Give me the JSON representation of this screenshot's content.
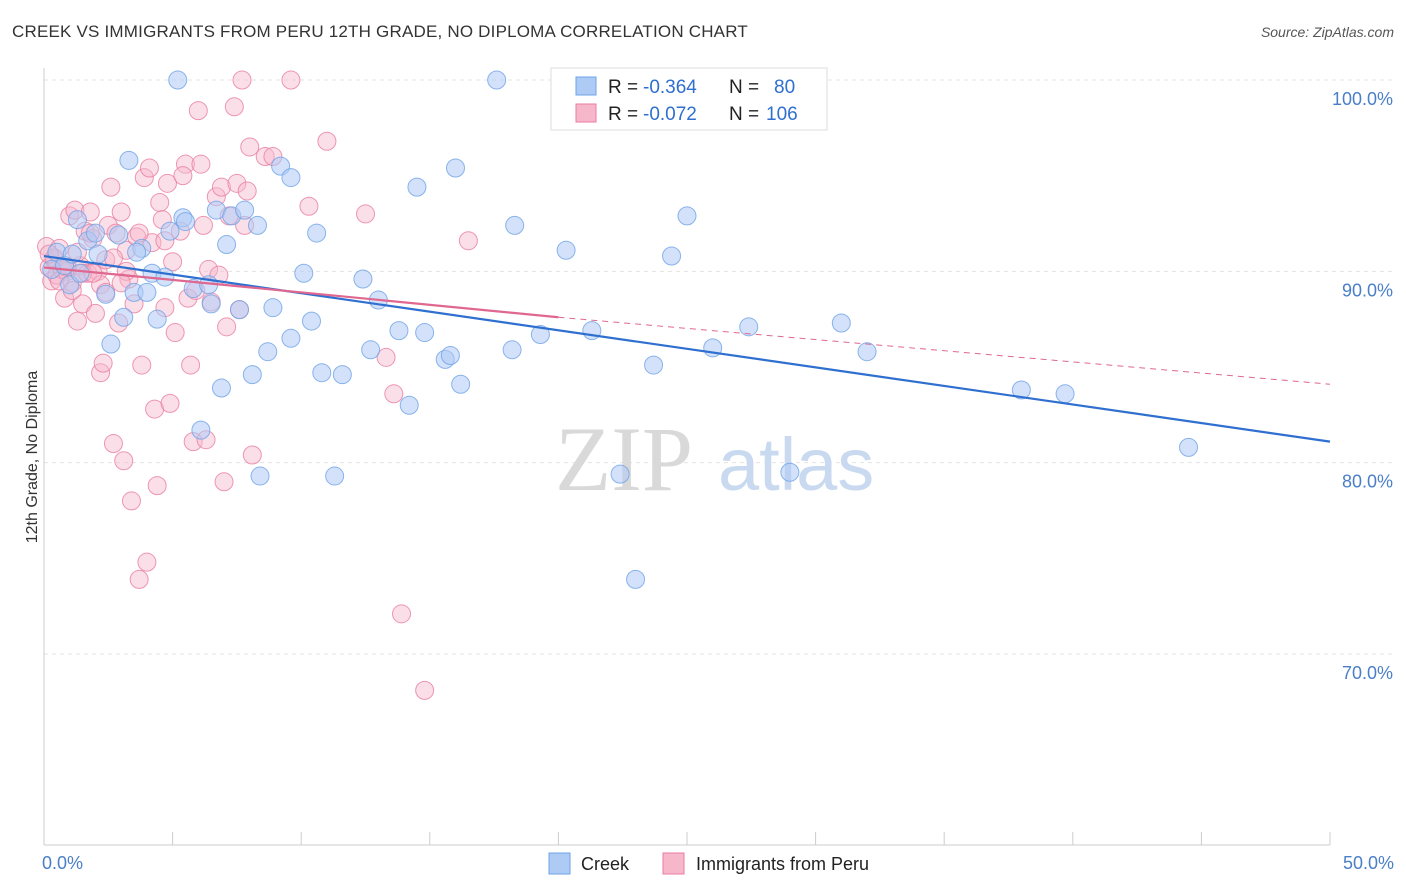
{
  "header": {
    "title": "CREEK VS IMMIGRANTS FROM PERU 12TH GRADE, NO DIPLOMA CORRELATION CHART",
    "source": "Source: ZipAtlas.com"
  },
  "watermark": {
    "part1": "ZIP",
    "part2": "atlas"
  },
  "legend_top": {
    "rows": [
      {
        "r_label": "R =",
        "r_value": "-0.364",
        "n_label": "N =",
        "n_value": "80",
        "color": "#aecbf5"
      },
      {
        "r_label": "R =",
        "r_value": "-0.072",
        "n_label": "N =",
        "n_value": "106",
        "color": "#f7b7cb"
      }
    ]
  },
  "chart_data": {
    "type": "scatter",
    "title": "CREEK VS IMMIGRANTS FROM PERU 12TH GRADE, NO DIPLOMA CORRELATION CHART",
    "xlabel": "",
    "ylabel": "12th Grade, No Diploma",
    "xlim": [
      0,
      50
    ],
    "ylim": [
      60,
      100
    ],
    "x_tick_labels": [
      "0.0%",
      "50.0%"
    ],
    "y_ticks": [
      70,
      80,
      90,
      100
    ],
    "y_tick_labels": [
      "70.0%",
      "80.0%",
      "90.0%",
      "100.0%"
    ],
    "grid": true,
    "legend_position": "top-center",
    "series": [
      {
        "name": "Creek",
        "color": "#6fa3e6",
        "fill": "#aecbf5",
        "r": -0.364,
        "n": 80,
        "trend": {
          "x": [
            0,
            50
          ],
          "y": [
            90.8,
            81.1
          ]
        },
        "points": [
          [
            0.3,
            90.1
          ],
          [
            0.5,
            91.0
          ],
          [
            0.8,
            90.3
          ],
          [
            1.0,
            89.3
          ],
          [
            1.1,
            90.9
          ],
          [
            1.3,
            92.7
          ],
          [
            1.7,
            91.6
          ],
          [
            2.1,
            90.9
          ],
          [
            2.4,
            88.8
          ],
          [
            2.6,
            86.2
          ],
          [
            2.9,
            91.9
          ],
          [
            3.1,
            87.6
          ],
          [
            3.3,
            95.8
          ],
          [
            3.5,
            88.9
          ],
          [
            3.8,
            91.2
          ],
          [
            4.0,
            88.9
          ],
          [
            4.2,
            89.9
          ],
          [
            4.4,
            87.5
          ],
          [
            4.7,
            89.7
          ],
          [
            4.9,
            92.1
          ],
          [
            5.2,
            100.0
          ],
          [
            5.4,
            92.8
          ],
          [
            5.5,
            92.6
          ],
          [
            5.8,
            89.1
          ],
          [
            6.1,
            81.7
          ],
          [
            6.4,
            89.3
          ],
          [
            6.5,
            88.3
          ],
          [
            6.7,
            93.2
          ],
          [
            6.9,
            83.9
          ],
          [
            7.1,
            91.4
          ],
          [
            7.3,
            92.9
          ],
          [
            7.6,
            88.0
          ],
          [
            7.8,
            93.2
          ],
          [
            8.1,
            84.6
          ],
          [
            8.3,
            92.4
          ],
          [
            8.4,
            79.3
          ],
          [
            8.7,
            85.8
          ],
          [
            8.9,
            88.1
          ],
          [
            9.2,
            95.5
          ],
          [
            9.6,
            94.9
          ],
          [
            9.6,
            86.5
          ],
          [
            10.1,
            89.9
          ],
          [
            10.4,
            87.4
          ],
          [
            10.6,
            92.0
          ],
          [
            10.8,
            84.7
          ],
          [
            11.3,
            79.3
          ],
          [
            11.6,
            84.6
          ],
          [
            12.4,
            89.6
          ],
          [
            12.7,
            85.9
          ],
          [
            13.0,
            88.5
          ],
          [
            13.8,
            86.9
          ],
          [
            14.2,
            83.0
          ],
          [
            14.5,
            94.4
          ],
          [
            14.8,
            86.8
          ],
          [
            15.6,
            85.4
          ],
          [
            15.8,
            85.6
          ],
          [
            16.0,
            95.4
          ],
          [
            16.2,
            84.1
          ],
          [
            17.6,
            100.0
          ],
          [
            18.2,
            85.9
          ],
          [
            18.3,
            92.4
          ],
          [
            19.3,
            86.7
          ],
          [
            20.3,
            91.1
          ],
          [
            21.3,
            86.9
          ],
          [
            22.4,
            79.4
          ],
          [
            23.0,
            73.9
          ],
          [
            23.7,
            85.1
          ],
          [
            24.4,
            90.8
          ],
          [
            25.0,
            92.9
          ],
          [
            26.0,
            86.0
          ],
          [
            27.4,
            87.1
          ],
          [
            29.0,
            79.5
          ],
          [
            31.0,
            87.3
          ],
          [
            32.0,
            85.8
          ],
          [
            38.0,
            83.8
          ],
          [
            39.7,
            83.6
          ],
          [
            44.5,
            80.8
          ],
          [
            1.4,
            89.9
          ],
          [
            2.0,
            92.0
          ],
          [
            3.6,
            91.0
          ]
        ]
      },
      {
        "name": "Immigrants from Peru",
        "color": "#e87ea0",
        "fill": "#f7b7cb",
        "r": -0.072,
        "n": 106,
        "trend": {
          "x": [
            0,
            20
          ],
          "y": [
            90.2,
            87.6
          ]
        },
        "trend_extension": {
          "x": [
            20,
            50
          ],
          "y": [
            87.6,
            84.1
          ]
        },
        "points": [
          [
            0.1,
            91.3
          ],
          [
            0.2,
            90.2
          ],
          [
            0.3,
            89.5
          ],
          [
            0.4,
            90.6
          ],
          [
            0.5,
            89.8
          ],
          [
            0.6,
            91.2
          ],
          [
            0.7,
            90.1
          ],
          [
            0.8,
            88.6
          ],
          [
            0.9,
            90.0
          ],
          [
            1.0,
            92.9
          ],
          [
            1.1,
            89.4
          ],
          [
            1.2,
            93.2
          ],
          [
            1.3,
            87.4
          ],
          [
            1.4,
            90.3
          ],
          [
            1.5,
            88.3
          ],
          [
            1.6,
            92.1
          ],
          [
            1.7,
            89.9
          ],
          [
            1.8,
            93.1
          ],
          [
            1.9,
            91.7
          ],
          [
            2.0,
            87.8
          ],
          [
            2.1,
            90.0
          ],
          [
            2.2,
            84.7
          ],
          [
            2.3,
            85.2
          ],
          [
            2.4,
            90.6
          ],
          [
            2.5,
            92.4
          ],
          [
            2.6,
            94.4
          ],
          [
            2.7,
            81.0
          ],
          [
            2.8,
            92.0
          ],
          [
            2.9,
            87.3
          ],
          [
            3.0,
            93.1
          ],
          [
            3.1,
            80.1
          ],
          [
            3.2,
            91.1
          ],
          [
            3.3,
            89.6
          ],
          [
            3.4,
            78.0
          ],
          [
            3.5,
            88.3
          ],
          [
            3.6,
            91.8
          ],
          [
            3.7,
            73.9
          ],
          [
            3.8,
            85.1
          ],
          [
            3.9,
            94.9
          ],
          [
            4.0,
            74.8
          ],
          [
            4.1,
            95.4
          ],
          [
            4.2,
            91.5
          ],
          [
            4.3,
            82.8
          ],
          [
            4.4,
            78.8
          ],
          [
            4.5,
            93.6
          ],
          [
            4.6,
            92.7
          ],
          [
            4.7,
            88.1
          ],
          [
            4.8,
            94.6
          ],
          [
            4.9,
            83.1
          ],
          [
            5.0,
            90.5
          ],
          [
            5.1,
            86.8
          ],
          [
            5.3,
            92.1
          ],
          [
            5.5,
            95.6
          ],
          [
            5.6,
            88.6
          ],
          [
            5.7,
            85.1
          ],
          [
            5.8,
            81.1
          ],
          [
            5.9,
            89.0
          ],
          [
            6.0,
            98.4
          ],
          [
            6.1,
            95.6
          ],
          [
            6.2,
            92.4
          ],
          [
            6.3,
            81.2
          ],
          [
            6.4,
            90.1
          ],
          [
            6.5,
            88.4
          ],
          [
            6.7,
            93.9
          ],
          [
            6.8,
            89.8
          ],
          [
            6.9,
            94.4
          ],
          [
            7.0,
            79.0
          ],
          [
            7.1,
            87.1
          ],
          [
            7.2,
            92.9
          ],
          [
            7.4,
            98.6
          ],
          [
            7.5,
            94.6
          ],
          [
            7.6,
            88.0
          ],
          [
            7.7,
            100.0
          ],
          [
            7.8,
            92.4
          ],
          [
            7.9,
            94.2
          ],
          [
            8.0,
            96.5
          ],
          [
            8.1,
            80.4
          ],
          [
            8.6,
            96.0
          ],
          [
            8.9,
            96.0
          ],
          [
            9.6,
            100.0
          ],
          [
            10.3,
            93.4
          ],
          [
            11.0,
            96.8
          ],
          [
            12.5,
            93.0
          ],
          [
            13.3,
            85.5
          ],
          [
            13.6,
            83.6
          ],
          [
            13.9,
            72.1
          ],
          [
            14.8,
            68.1
          ],
          [
            16.5,
            91.6
          ],
          [
            0.4,
            90.7
          ],
          [
            0.9,
            90.2
          ],
          [
            1.3,
            91.0
          ],
          [
            1.8,
            92.0
          ],
          [
            2.2,
            89.3
          ],
          [
            2.7,
            90.7
          ],
          [
            3.2,
            90.0
          ],
          [
            3.7,
            92.0
          ],
          [
            0.6,
            89.5
          ],
          [
            1.5,
            89.9
          ],
          [
            2.4,
            88.9
          ],
          [
            3.0,
            89.4
          ],
          [
            0.2,
            90.9
          ],
          [
            1.1,
            89.0
          ],
          [
            1.9,
            89.9
          ],
          [
            0.8,
            90.3
          ],
          [
            4.7,
            91.6
          ],
          [
            5.4,
            95.0
          ]
        ]
      }
    ]
  },
  "legend_bottom": {
    "items": [
      {
        "label": "Creek",
        "color": "#aecbf5"
      },
      {
        "label": "Immigrants from Peru",
        "color": "#f7b7cb"
      }
    ]
  }
}
